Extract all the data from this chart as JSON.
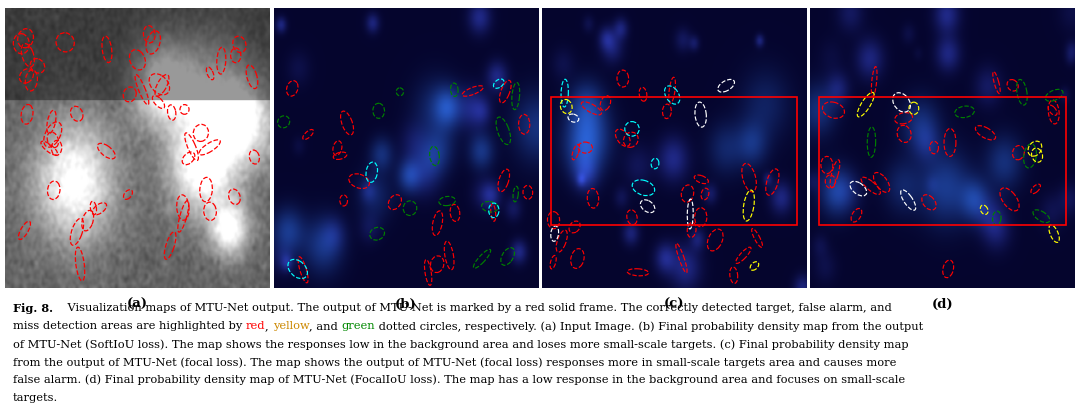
{
  "subplot_labels": [
    "(a)",
    "(b)",
    "(c)",
    "(d)"
  ],
  "font_size_caption": 8.2,
  "font_size_label": 9.5,
  "background_color": "#ffffff",
  "caption_lines": [
    [
      [
        "Fig. 8.",
        "black",
        true
      ],
      [
        "    Visualization maps of MTU-Net output. The output of MTU-Net is marked by a red solid frame. The correctly detected target, false alarm, and",
        "black",
        false
      ]
    ],
    [
      [
        "miss detection areas are highlighted by ",
        "black",
        false
      ],
      [
        "red",
        "#ff0000",
        false
      ],
      [
        ", ",
        "black",
        false
      ],
      [
        "yellow",
        "#cc8800",
        false
      ],
      [
        ", and ",
        "black",
        false
      ],
      [
        "green",
        "#008800",
        false
      ],
      [
        " dotted circles, respectively. (a) Input Image. (b) Final probability density map from the output",
        "black",
        false
      ]
    ],
    [
      [
        "of MTU-Net (SoftIoU loss). The map shows the responses low in the background area and loses more small-scale targets. (c) Final probability density map",
        "black",
        false
      ]
    ],
    [
      [
        "from the output of MTU-Net (focal loss). The map shows the output of MTU-Net (focal loss) responses more in small-scale targets area and causes more",
        "black",
        false
      ]
    ],
    [
      [
        "false alarm. (d) Final probability density map of MTU-Net (FocalIoU loss). The map has a low response in the background area and focuses on small-scale",
        "black",
        false
      ]
    ],
    [
      [
        "targets.",
        "black",
        false
      ]
    ]
  ]
}
